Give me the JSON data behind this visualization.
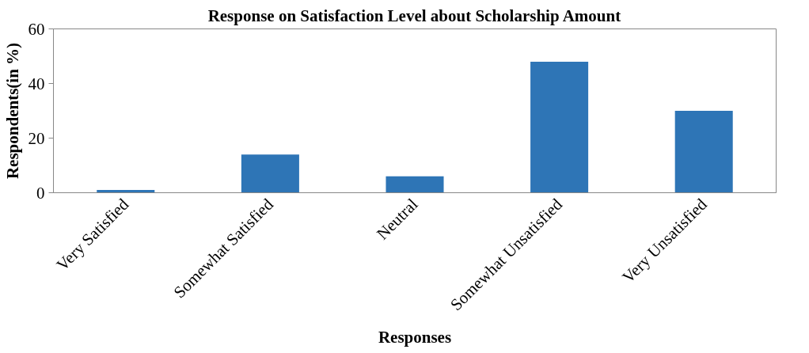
{
  "chart_data": {
    "type": "bar",
    "title": "Response on Satisfaction Level about Scholarship Amount",
    "xlabel": "Responses",
    "ylabel": "Respondents(in %)",
    "categories": [
      "Very Satisfied",
      "Somewhat Satisfied",
      "Neutral",
      "Somewhat Unsatisfied",
      "Very Unsatisfied"
    ],
    "values": [
      1,
      14,
      6,
      48,
      30
    ],
    "color": "#2e75b6",
    "ylim": [
      0,
      60
    ],
    "yticks": [
      0,
      20,
      40,
      60
    ],
    "grid": false
  }
}
